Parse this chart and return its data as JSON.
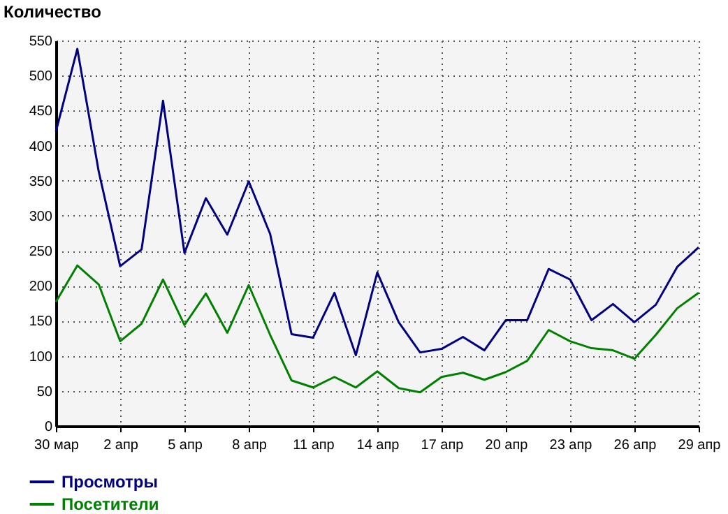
{
  "chart_data": {
    "type": "line",
    "ylabel": "Количество",
    "categories": [
      "30 мар",
      null,
      null,
      "2 апр",
      null,
      null,
      "5 апр",
      null,
      null,
      "8 апр",
      null,
      null,
      "11 апр",
      null,
      null,
      "14 апр",
      null,
      null,
      "17 апр",
      null,
      null,
      "20 апр",
      null,
      null,
      "23 апр",
      null,
      null,
      "26 апр",
      null,
      null,
      "29 апр"
    ],
    "series": [
      {
        "name": "Просмотры",
        "color": "#000080",
        "values": [
          420,
          538,
          363,
          228,
          252,
          464,
          247,
          325,
          273,
          349,
          274,
          131,
          126,
          190,
          101,
          219,
          148,
          105,
          110,
          127,
          108,
          151,
          151,
          224,
          209,
          151,
          174,
          148,
          173,
          227,
          255
        ]
      },
      {
        "name": "Посетители",
        "color": "#008000",
        "values": [
          177,
          229,
          202,
          121,
          146,
          209,
          144,
          189,
          133,
          201,
          130,
          65,
          55,
          70,
          55,
          78,
          54,
          48,
          70,
          76,
          66,
          77,
          93,
          137,
          121,
          111,
          108,
          96,
          130,
          168,
          190
        ]
      }
    ],
    "ylim": [
      0,
      550
    ],
    "yticks": [
      0,
      50,
      100,
      150,
      200,
      250,
      300,
      350,
      400,
      450,
      500,
      550
    ],
    "grid": true,
    "legend": "bottom left"
  }
}
